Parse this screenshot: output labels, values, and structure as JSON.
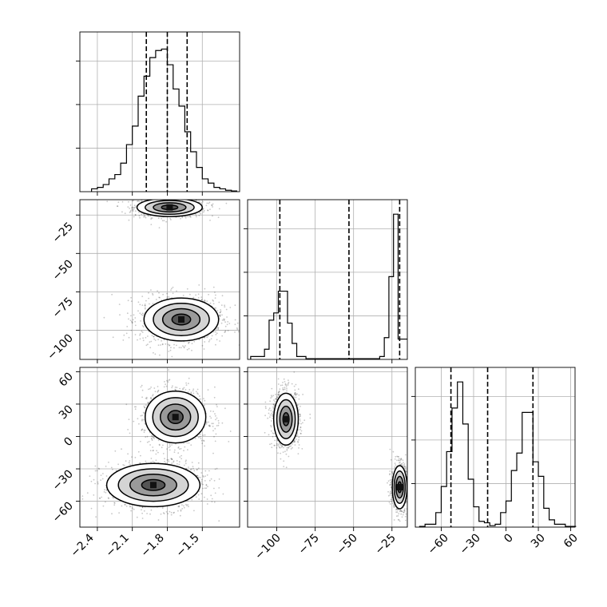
{
  "chart_data": [
    {
      "type": "histogram",
      "panel": "hist-p0",
      "bins": [
        -2.45,
        -2.4,
        -2.35,
        -2.3,
        -2.25,
        -2.2,
        -2.15,
        -2.1,
        -2.05,
        -2.0,
        -1.95,
        -1.9,
        -1.85,
        -1.8,
        -1.75,
        -1.7,
        -1.65,
        -1.6,
        -1.55,
        -1.5,
        -1.45,
        -1.4,
        -1.35,
        -1.3,
        -1.25,
        -1.2
      ],
      "counts": [
        0.02,
        0.03,
        0.05,
        0.09,
        0.12,
        0.2,
        0.33,
        0.46,
        0.67,
        0.81,
        0.94,
        0.99,
        1.0,
        0.89,
        0.72,
        0.6,
        0.42,
        0.28,
        0.17,
        0.09,
        0.06,
        0.03,
        0.02,
        0.01,
        0.005
      ],
      "quantiles": [
        -1.98,
        -1.8,
        -1.63
      ],
      "xlim": [
        -2.55,
        -1.18
      ],
      "ylim": [
        0,
        1.12
      ],
      "grid": true
    },
    {
      "type": "histogram",
      "panel": "hist-p1",
      "bins": [
        -117,
        -114,
        -111,
        -108,
        -105,
        -102,
        -99,
        -96,
        -93,
        -90,
        -87,
        -84,
        -81,
        -78,
        -75,
        -72,
        -69,
        -66,
        -63,
        -60,
        -57,
        -54,
        -51,
        -48,
        -45,
        -42,
        -39,
        -36,
        -33,
        -30,
        -27,
        -24,
        -21,
        -18,
        -15
      ],
      "counts": [
        0.02,
        0.02,
        0.02,
        0.07,
        0.27,
        0.32,
        0.47,
        0.47,
        0.25,
        0.11,
        0.02,
        0.02,
        0.005,
        0.005,
        0.005,
        0.005,
        0.005,
        0.005,
        0.005,
        0.005,
        0.005,
        0.005,
        0.005,
        0.005,
        0.005,
        0.005,
        0.005,
        0.005,
        0.02,
        0.15,
        0.57,
        1.0,
        0.14,
        0.14
      ],
      "quantiles": [
        -98,
        -53,
        -20
      ],
      "xlim": [
        -119,
        -15
      ],
      "ylim": [
        0,
        1.1
      ],
      "grid": true
    },
    {
      "type": "histogram",
      "panel": "hist-p2",
      "bins": [
        -80,
        -75,
        -70,
        -65,
        -60,
        -55,
        -50,
        -45,
        -40,
        -35,
        -30,
        -25,
        -20,
        -15,
        -10,
        -5,
        0,
        5,
        10,
        15,
        20,
        25,
        30,
        35,
        40,
        45,
        50,
        55,
        60,
        65
      ],
      "counts": [
        0.005,
        0.02,
        0.02,
        0.1,
        0.28,
        0.52,
        0.82,
        1.0,
        0.71,
        0.33,
        0.14,
        0.04,
        0.03,
        0.01,
        0.02,
        0.1,
        0.18,
        0.39,
        0.51,
        0.79,
        0.79,
        0.45,
        0.35,
        0.13,
        0.05,
        0.02,
        0.02,
        0.005,
        0.005
      ],
      "quantiles": [
        -51,
        -17,
        25
      ],
      "xlim": [
        -84,
        64
      ],
      "ylim": [
        0,
        1.1
      ],
      "grid": true
    },
    {
      "type": "scatter",
      "panel": "p1-vs-p0",
      "xlim": [
        -2.55,
        -1.18
      ],
      "ylim": [
        -119,
        -15
      ],
      "clusters": [
        {
          "cx": -1.78,
          "cy": -20,
          "sx": 0.14,
          "sy": 3,
          "n": 850
        },
        {
          "cx": -1.68,
          "cy": -93,
          "sx": 0.16,
          "sy": 7,
          "n": 1200
        }
      ],
      "grid": true
    },
    {
      "type": "scatter",
      "panel": "p2-vs-p0",
      "xlim": [
        -2.55,
        -1.18
      ],
      "ylim": [
        -84,
        64
      ],
      "clusters": [
        {
          "cx": -1.73,
          "cy": 18,
          "sx": 0.13,
          "sy": 12,
          "n": 1100
        },
        {
          "cx": -1.92,
          "cy": -45,
          "sx": 0.2,
          "sy": 10,
          "n": 1100
        }
      ],
      "grid": true
    },
    {
      "type": "scatter",
      "panel": "p2-vs-p1",
      "xlim": [
        -119,
        -15
      ],
      "ylim": [
        -84,
        64
      ],
      "clusters": [
        {
          "cx": -94,
          "cy": 16,
          "sx": 4,
          "sy": 12,
          "n": 1100
        },
        {
          "cx": -20,
          "cy": -47,
          "sx": 2.4,
          "sy": 10,
          "n": 900
        }
      ],
      "grid": true
    }
  ],
  "axes": {
    "col0_ticks": [
      "−2.4",
      "−2.1",
      "−1.8",
      "−1.5"
    ],
    "col0_tick_values": [
      -2.4,
      -2.1,
      -1.8,
      -1.5
    ],
    "col1_ticks": [
      "−100",
      "−75",
      "−50",
      "−25"
    ],
    "col1_tick_values": [
      -100,
      -75,
      -50,
      -25
    ],
    "col2_ticks": [
      "−60",
      "−30",
      "0",
      "30",
      "60"
    ],
    "col2_tick_values": [
      -60,
      -30,
      0,
      30,
      60
    ],
    "row1_ticks": [
      "−25",
      "−50",
      "−75",
      "−100"
    ],
    "row1_tick_values": [
      -25,
      -50,
      -75,
      -100
    ],
    "row2_ticks": [
      "60",
      "30",
      "0",
      "−30",
      "−60"
    ],
    "row2_tick_values": [
      60,
      30,
      0,
      -30,
      -60
    ]
  }
}
